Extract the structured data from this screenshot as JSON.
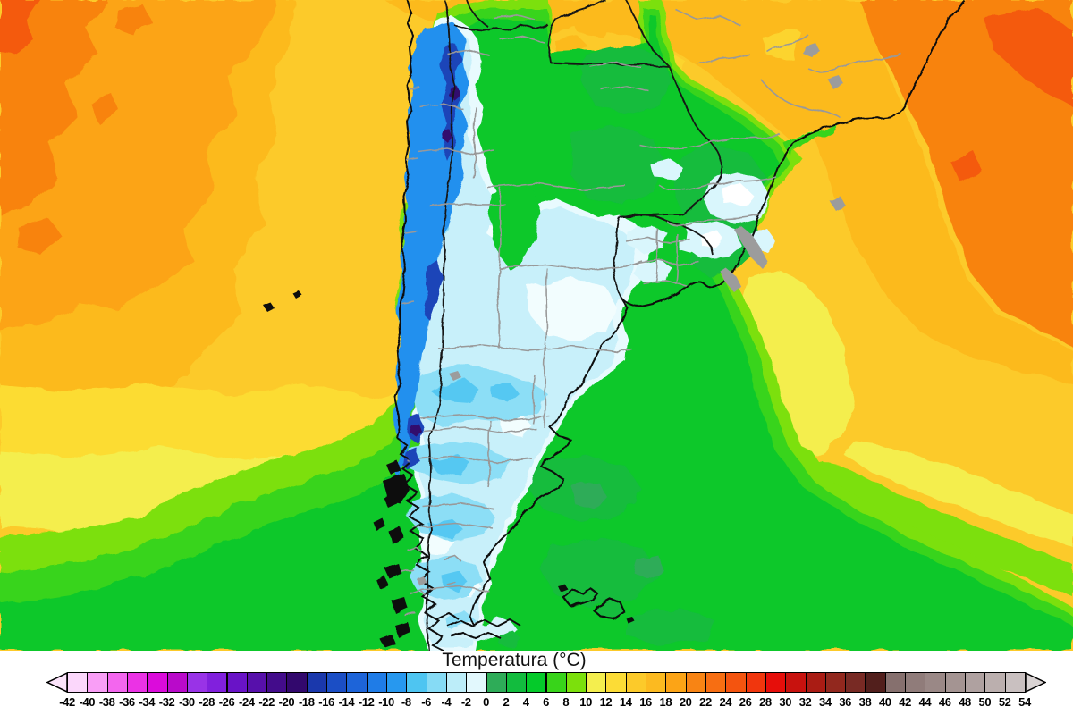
{
  "legend": {
    "title": "Temperatura (°C)",
    "unit": "°C",
    "min": -42,
    "max": 54,
    "step": 2,
    "tick_labels": [
      "-42",
      "-40",
      "-38",
      "-36",
      "-34",
      "-32",
      "-30",
      "-28",
      "-26",
      "-24",
      "-22",
      "-20",
      "-18",
      "-16",
      "-14",
      "-12",
      "-10",
      "-8",
      "-6",
      "-4",
      "-2",
      "0",
      "2",
      "4",
      "6",
      "8",
      "10",
      "12",
      "14",
      "16",
      "18",
      "20",
      "22",
      "24",
      "26",
      "28",
      "30",
      "32",
      "34",
      "36",
      "38",
      "40",
      "42",
      "44",
      "46",
      "48",
      "50",
      "52",
      "54"
    ],
    "colors": [
      "#FBD7FB",
      "#F99EF6",
      "#F366EE",
      "#EB32E5",
      "#DB0BDB",
      "#B90ACA",
      "#9933E7",
      "#8120DD",
      "#6913C7",
      "#5710AB",
      "#430C8B",
      "#32086D",
      "#1A38AC",
      "#1B4EC5",
      "#1D64D9",
      "#1F7CE7",
      "#2798EF",
      "#4EC5F1",
      "#86DBF5",
      "#BCEDF9",
      "#E2F8FD",
      "#2EAC58",
      "#12BC3E",
      "#04CA2A",
      "#38D41A",
      "#7CE00C",
      "#F4EE4E",
      "#FCDC36",
      "#FCCA2A",
      "#FCBA20",
      "#FCA416",
      "#F88414",
      "#F76E12",
      "#F4540F",
      "#F1360D",
      "#E60E0A",
      "#C8120E",
      "#AA1C14",
      "#92281E",
      "#782A24",
      "#521F1C",
      "#86706E",
      "#907C7A",
      "#9A8886",
      "#A49492",
      "#AFA1A0",
      "#BBAFAE",
      "#C9C0C0"
    ],
    "left_arrow_color": "#FBE3FA",
    "right_arrow_color": "#D9D3D3"
  },
  "map": {
    "description": "Surface temperature map of southern South America: cold (white/blue) core over the Andes, central Argentina and Patagonia; green mild band over northern Argentina, Uruguay, Paraguay and southern Brazil; warm yellow-orange tropical Atlantic and Pacific to the north."
  }
}
